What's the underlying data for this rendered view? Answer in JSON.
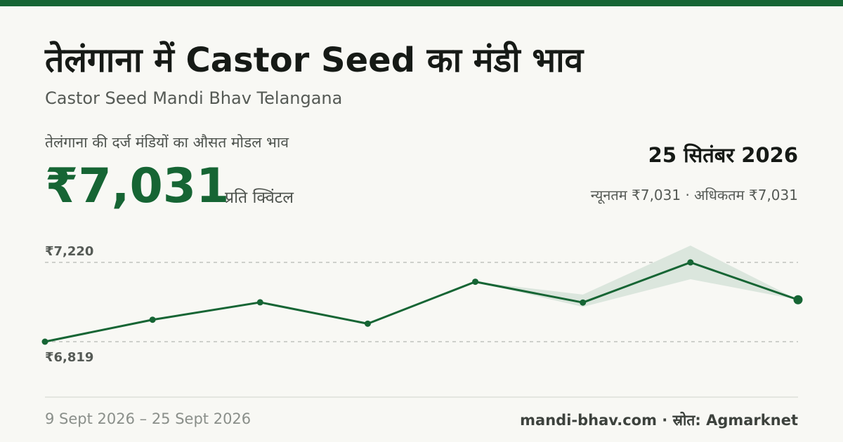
{
  "header": {
    "title": "तेलंगाना में Castor Seed का मंडी भाव",
    "subtitle": "Castor Seed Mandi Bhav Telangana",
    "avg_label": "तेलंगाना की दर्ज मंडियों का औसत मोडल भाव",
    "price": "₹7,031",
    "unit": "प्रति क्विंटल",
    "date": "25 सितंबर 2026",
    "range": "न्यूनतम ₹7,031 · अधिकतम ₹7,031"
  },
  "footer": {
    "date_range": "9 Sept 2026 – 25 Sept 2026",
    "source": "mandi-bhav.com · स्रोत: Agmarknet"
  },
  "colors": {
    "accent": "#166534",
    "band": "#dbe6dd",
    "gridline": "#bfc3bd"
  },
  "chart_data": {
    "type": "line",
    "ylim": [
      6819,
      7220
    ],
    "ytick_labels": [
      "₹7,220",
      "₹6,819"
    ],
    "values": [
      6819,
      6930,
      7018,
      6910,
      7122,
      7017,
      7220,
      7031
    ],
    "band_low": [
      6819,
      6930,
      7018,
      6910,
      7122,
      6995,
      7135,
      7031
    ],
    "band_high": [
      6819,
      6930,
      7018,
      6910,
      7122,
      7057,
      7305,
      7031
    ],
    "grid": true,
    "legend": "none"
  }
}
